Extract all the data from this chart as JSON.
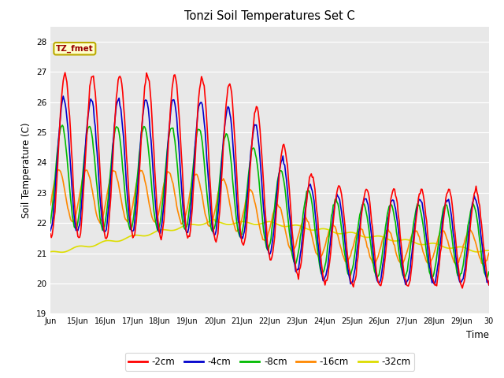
{
  "title": "Tonzi Soil Temperatures Set C",
  "xlabel": "Time",
  "ylabel": "Soil Temperature (C)",
  "ylim": [
    19.0,
    28.5
  ],
  "yticks": [
    19.0,
    20.0,
    21.0,
    22.0,
    23.0,
    24.0,
    25.0,
    26.0,
    27.0,
    28.0
  ],
  "xtick_labels": [
    "Jun",
    "15Jun",
    "16Jun",
    "17Jun",
    "18Jun",
    "19Jun",
    "20Jun",
    "21Jun",
    "22Jun",
    "23Jun",
    "24Jun",
    "25Jun",
    "26Jun",
    "27Jun",
    "28Jun",
    "29Jun",
    "30"
  ],
  "xtick_positions": [
    14,
    15,
    16,
    17,
    18,
    19,
    20,
    21,
    22,
    23,
    24,
    25,
    26,
    27,
    28,
    29,
    30
  ],
  "legend_labels": [
    "-2cm",
    "-4cm",
    "-8cm",
    "-16cm",
    "-32cm"
  ],
  "legend_colors": [
    "#ff0000",
    "#0000cc",
    "#00bb00",
    "#ff8800",
    "#dddd00"
  ],
  "annotation_text": "TZ_fmet",
  "annotation_box_color": "#ffffcc",
  "annotation_border_color": "#bbaa00",
  "line_width": 1.2,
  "series_colors": {
    "2cm": "#ff0000",
    "4cm": "#0000cc",
    "8cm": "#00bb00",
    "16cm": "#ff8800",
    "32cm": "#dddd00"
  },
  "num_points": 480,
  "x_start": 14.0,
  "x_end": 30.0,
  "figsize": [
    6.4,
    4.8
  ],
  "dpi": 100
}
